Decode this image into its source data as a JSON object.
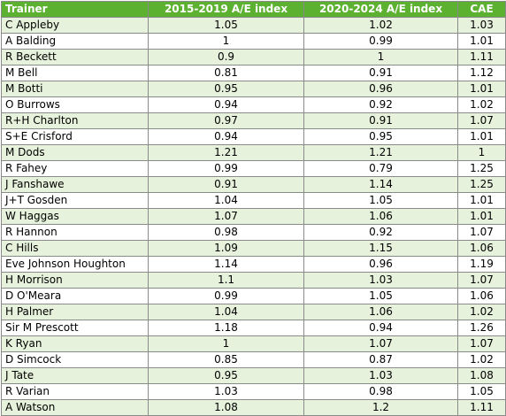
{
  "table": {
    "headers": [
      "Trainer",
      "2015-2019 A/E index",
      "2020-2024 A/E index",
      "CAE"
    ],
    "rows": [
      [
        "C Appleby",
        "1.05",
        "1.02",
        "1.03"
      ],
      [
        "A Balding",
        "1",
        "0.99",
        "1.01"
      ],
      [
        "R Beckett",
        "0.9",
        "1",
        "1.11"
      ],
      [
        "M Bell",
        "0.81",
        "0.91",
        "1.12"
      ],
      [
        "M Botti",
        "0.95",
        "0.96",
        "1.01"
      ],
      [
        "O Burrows",
        "0.94",
        "0.92",
        "1.02"
      ],
      [
        "R+H Charlton",
        "0.97",
        "0.91",
        "1.07"
      ],
      [
        "S+E Crisford",
        "0.94",
        "0.95",
        "1.01"
      ],
      [
        "M Dods",
        "1.21",
        "1.21",
        "1"
      ],
      [
        "R Fahey",
        "0.99",
        "0.79",
        "1.25"
      ],
      [
        "J Fanshawe",
        "0.91",
        "1.14",
        "1.25"
      ],
      [
        "J+T Gosden",
        "1.04",
        "1.05",
        "1.01"
      ],
      [
        "W Haggas",
        "1.07",
        "1.06",
        "1.01"
      ],
      [
        "R Hannon",
        "0.98",
        "0.92",
        "1.07"
      ],
      [
        "C Hills",
        "1.09",
        "1.15",
        "1.06"
      ],
      [
        "Eve Johnson Houghton",
        "1.14",
        "0.96",
        "1.19"
      ],
      [
        "H Morrison",
        "1.1",
        "1.03",
        "1.07"
      ],
      [
        "D O'Meara",
        "0.99",
        "1.05",
        "1.06"
      ],
      [
        "H Palmer",
        "1.04",
        "1.06",
        "1.02"
      ],
      [
        "Sir M Prescott",
        "1.18",
        "0.94",
        "1.26"
      ],
      [
        "K Ryan",
        "1",
        "1.07",
        "1.07"
      ],
      [
        "D Simcock",
        "0.85",
        "0.87",
        "1.02"
      ],
      [
        "J Tate",
        "0.95",
        "1.03",
        "1.08"
      ],
      [
        "R Varian",
        "1.03",
        "0.98",
        "1.05"
      ],
      [
        "A Watson",
        "1.08",
        "1.2",
        "1.11"
      ]
    ]
  },
  "colors": {
    "header_bg": "#5cb130",
    "stripe_bg": "#e6f2db",
    "border": "#8a8a8a"
  }
}
